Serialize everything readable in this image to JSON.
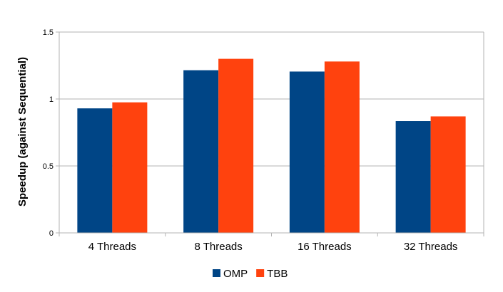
{
  "chart_data": {
    "type": "bar",
    "title": "",
    "xlabel": "",
    "ylabel": "Speedup (against Sequential)",
    "categories": [
      "4 Threads",
      "8 Threads",
      "16 Threads",
      "32 Threads"
    ],
    "series": [
      {
        "name": "OMP",
        "color": "#004586",
        "values": [
          0.93,
          1.215,
          1.205,
          0.835
        ]
      },
      {
        "name": "TBB",
        "color": "#ff420e",
        "values": [
          0.975,
          1.3,
          1.28,
          0.87
        ]
      }
    ],
    "ylim": [
      0,
      1.5
    ],
    "yticks": [
      {
        "value": 0,
        "label": "0"
      },
      {
        "value": 0.5,
        "label": "0.5"
      },
      {
        "value": 1,
        "label": "1"
      },
      {
        "value": 1.5,
        "label": "1.5"
      }
    ],
    "grid": true,
    "legend_position": "bottom-center"
  }
}
